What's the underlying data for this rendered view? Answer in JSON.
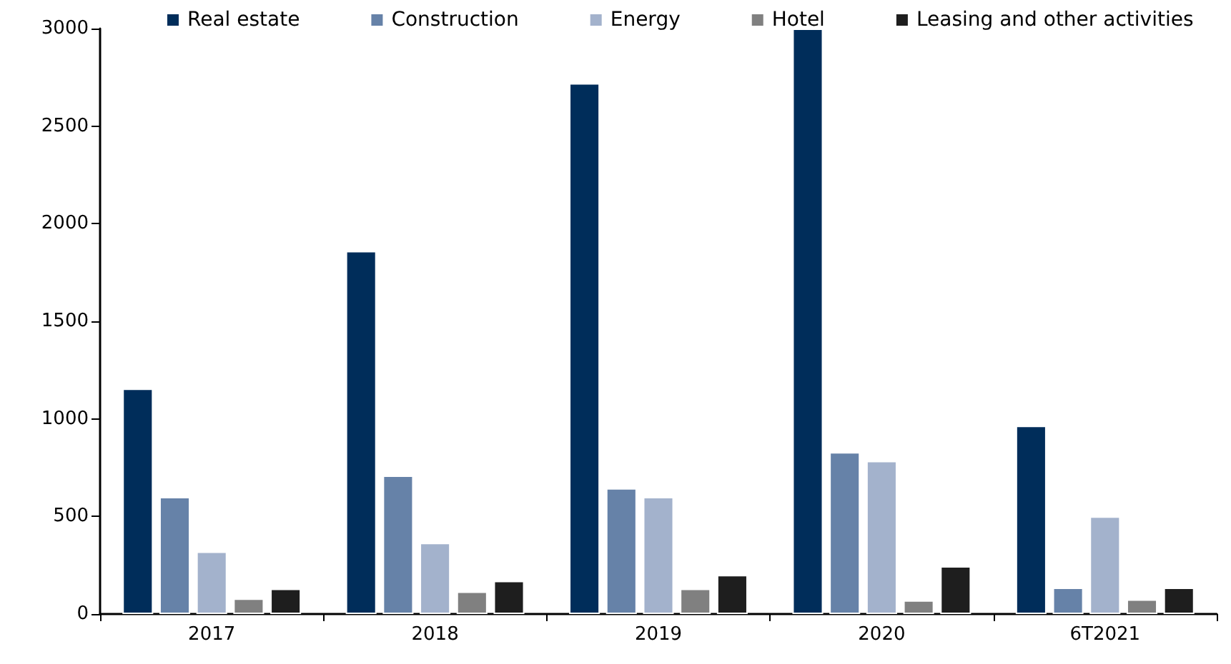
{
  "chart_data": {
    "type": "bar",
    "categories": [
      "2017",
      "2018",
      "2019",
      "2020",
      "6T2021"
    ],
    "series": [
      {
        "name": "Real estate",
        "color": "#002d5a",
        "values": [
          1155,
          1860,
          2720,
          3000,
          965
        ]
      },
      {
        "name": "Construction",
        "color": "#6682a8",
        "values": [
          600,
          710,
          645,
          830,
          135
        ]
      },
      {
        "name": "Energy",
        "color": "#a3b2cc",
        "values": [
          320,
          365,
          600,
          785,
          500
        ]
      },
      {
        "name": "Hotel",
        "color": "#808080",
        "values": [
          80,
          115,
          130,
          70,
          75
        ]
      },
      {
        "name": "Leasing and other activities",
        "color": "#1e1e1e",
        "values": [
          130,
          170,
          200,
          245,
          135
        ]
      }
    ],
    "ylim": [
      0,
      3000
    ],
    "yticks": [
      0,
      500,
      1000,
      1500,
      2000,
      2500,
      3000
    ],
    "grid": false,
    "legend": "top"
  }
}
